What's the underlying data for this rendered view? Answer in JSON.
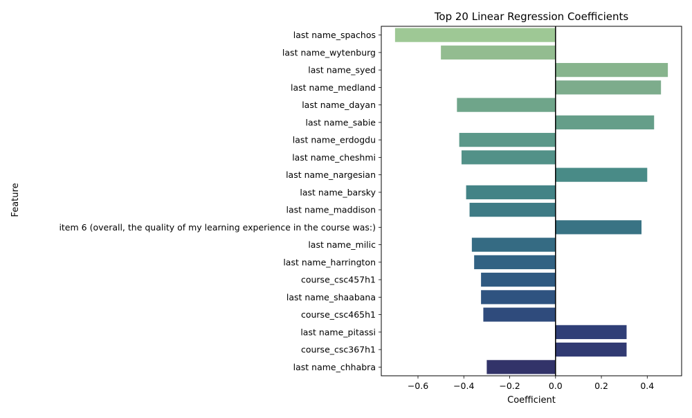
{
  "chart_data": {
    "type": "bar",
    "orientation": "horizontal",
    "title": "Top 20 Linear Regression Coefficients",
    "xlabel": "Coefficient",
    "ylabel": "Feature",
    "xlim": [
      -0.76,
      0.55
    ],
    "xticks": [
      -0.6,
      -0.4,
      -0.2,
      0.0,
      0.2,
      0.4
    ],
    "xtick_labels": [
      "−0.6",
      "−0.4",
      "−0.2",
      "0.0",
      "0.2",
      "0.4"
    ],
    "grid": false,
    "legend": "none",
    "zero_line": true,
    "categories": [
      "last name_spachos",
      "last name_wytenburg",
      "last name_syed",
      "last name_medland",
      "last name_dayan",
      "last name_sabie",
      "last name_erdogdu",
      "last name_cheshmi",
      "last name_nargesian",
      "last name_barsky",
      "last name_maddison",
      "item 6 (overall, the quality of my learning experience in the course was:)",
      "last name_milic",
      "last name_harrington",
      "course_csc457h1",
      "last name_shaabana",
      "course_csc465h1",
      "last name_pitassi",
      "course_csc367h1",
      "last name_chhabra"
    ],
    "values": [
      -0.7,
      -0.5,
      0.49,
      0.46,
      -0.43,
      0.43,
      -0.42,
      -0.41,
      0.4,
      -0.39,
      -0.375,
      0.375,
      -0.365,
      -0.355,
      -0.325,
      -0.325,
      -0.315,
      0.31,
      0.31,
      -0.3
    ],
    "colors": [
      "#9ec895",
      "#93bc90",
      "#87b48d",
      "#7dac8c",
      "#6fa58a",
      "#659e89",
      "#5b9889",
      "#529188",
      "#498b87",
      "#438386",
      "#3e7b85",
      "#397384",
      "#356b83",
      "#326283",
      "#305a81",
      "#2f5380",
      "#2f4b7c",
      "#303f77",
      "#313a72",
      "#323369"
    ]
  }
}
